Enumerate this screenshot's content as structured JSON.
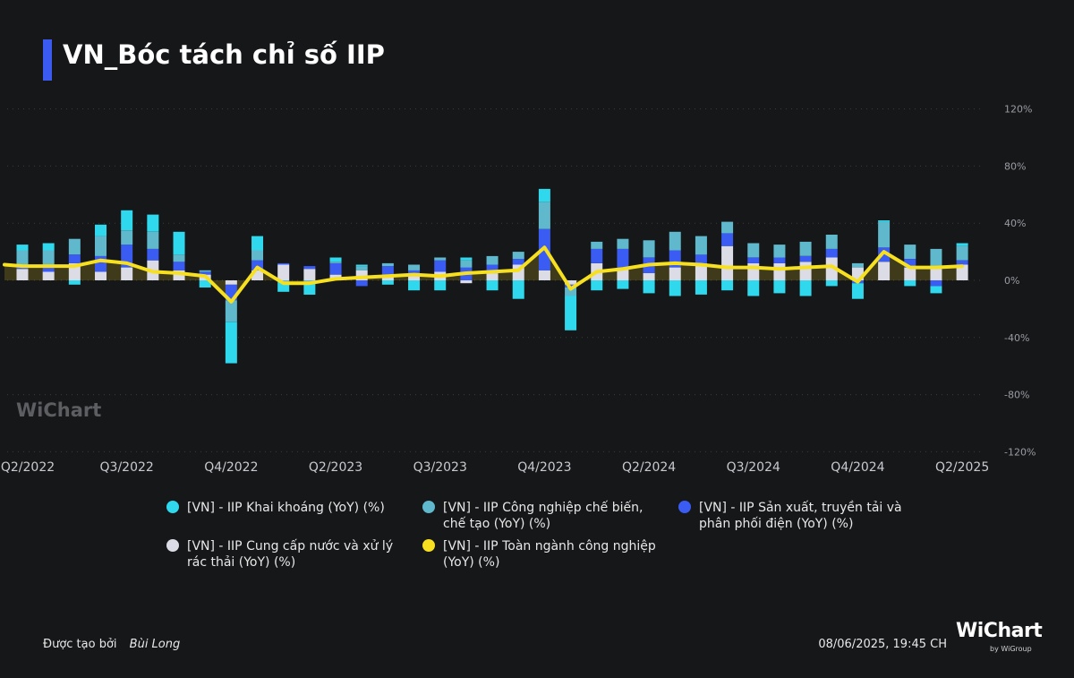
{
  "title": "VN_Bóc tách chỉ số IIP",
  "watermark": "WiChart",
  "brand": {
    "logo": "WiChart",
    "byline": "by WiGroup"
  },
  "footer": {
    "created_by_label": "Được tạo bởi",
    "author": "Bùi Long",
    "timestamp": "08/06/2025, 19:45 CH"
  },
  "colors": {
    "background": "#161719",
    "khai_khoang": "#2fd8ec",
    "che_bien": "#5fb8cc",
    "dien": "#3a5cf2",
    "nuoc": "#dcdce6",
    "toan_nganh": "#f7e020",
    "accent": "#3b5bf0"
  },
  "chart_data": {
    "type": "bar",
    "stacked": true,
    "grid": true,
    "legend_position": "bottom",
    "y_axis_side": "right",
    "ylim": [
      -120,
      120
    ],
    "y_ticks": [
      120,
      80,
      40,
      0,
      -40,
      -80,
      -120
    ],
    "y_tick_labels": [
      "120%",
      "80%",
      "40%",
      "0%",
      "-40%",
      "-80%",
      "-120%"
    ],
    "x_tick_labels": [
      "Q2/2022",
      "Q3/2022",
      "Q4/2022",
      "Q2/2023",
      "Q3/2023",
      "Q4/2023",
      "Q2/2024",
      "Q3/2024",
      "Q4/2024",
      "Q2/2025"
    ],
    "series": [
      {
        "name": "[VN] - IIP Khai khoáng (YoY) (%)",
        "key": "khai_khoang",
        "color": "#2fd8ec",
        "values": [
          4,
          5,
          -3,
          8,
          14,
          12,
          16,
          -5,
          -29,
          10,
          -7,
          -8,
          3,
          1,
          -3,
          -7,
          -7,
          2,
          -7,
          -13,
          9,
          -24,
          -7,
          -6,
          -9,
          -11,
          -10,
          -7,
          -11,
          -9,
          -11,
          -4,
          -11,
          1,
          -4,
          -5,
          2
        ]
      },
      {
        "name": "[VN] - IIP Công nghiệp chế biến, chế tạo (YoY) (%)",
        "key": "che_bien",
        "color": "#5fb8cc",
        "values": [
          10,
          10,
          11,
          14,
          10,
          12,
          5,
          1,
          -15,
          7,
          -1,
          -2,
          1,
          3,
          2,
          4,
          2,
          5,
          6,
          5,
          19,
          -6,
          5,
          7,
          12,
          13,
          13,
          8,
          10,
          9,
          10,
          10,
          3,
          18,
          10,
          14,
          10
        ]
      },
      {
        "name": "[VN] - IIP Sản xuất, truyền tải và phân phối điện (YoY) (%)",
        "key": "dien",
        "color": "#3a5cf2",
        "values": [
          3,
          5,
          6,
          11,
          16,
          8,
          6,
          2,
          -11,
          7,
          1,
          2,
          8,
          -4,
          6,
          4,
          8,
          9,
          6,
          4,
          29,
          -2,
          10,
          14,
          11,
          12,
          6,
          9,
          4,
          4,
          4,
          6,
          -2,
          10,
          6,
          -4,
          3
        ]
      },
      {
        "name": "[VN] - IIP Cung cấp nước và xử lý rác thải (YoY) (%)",
        "key": "nuoc",
        "color": "#dcdce6",
        "values": [
          8,
          6,
          12,
          6,
          9,
          14,
          7,
          4,
          -3,
          7,
          11,
          8,
          4,
          7,
          4,
          3,
          6,
          -2,
          5,
          11,
          7,
          -3,
          12,
          8,
          5,
          9,
          12,
          24,
          12,
          12,
          13,
          16,
          9,
          13,
          9,
          8,
          11
        ]
      },
      {
        "name": "[VN] - IIP Toàn ngành công nghiệp (YoY) (%)",
        "key": "toan_nganh",
        "color": "#f7e020",
        "type": "line",
        "values": [
          11,
          10,
          10,
          10,
          14,
          12,
          6,
          5,
          3,
          -15,
          9,
          -2,
          -2,
          1,
          2,
          3,
          4,
          3,
          5,
          6,
          7,
          23,
          -6,
          6,
          8,
          11,
          12,
          11,
          9,
          9,
          8,
          9,
          10,
          -1,
          20,
          9,
          9,
          10
        ]
      }
    ],
    "n_bars": 37,
    "line_points": 38,
    "x_tick_positions": [
      1,
      5,
      9,
      13,
      17,
      21,
      25,
      29,
      33,
      37
    ]
  }
}
